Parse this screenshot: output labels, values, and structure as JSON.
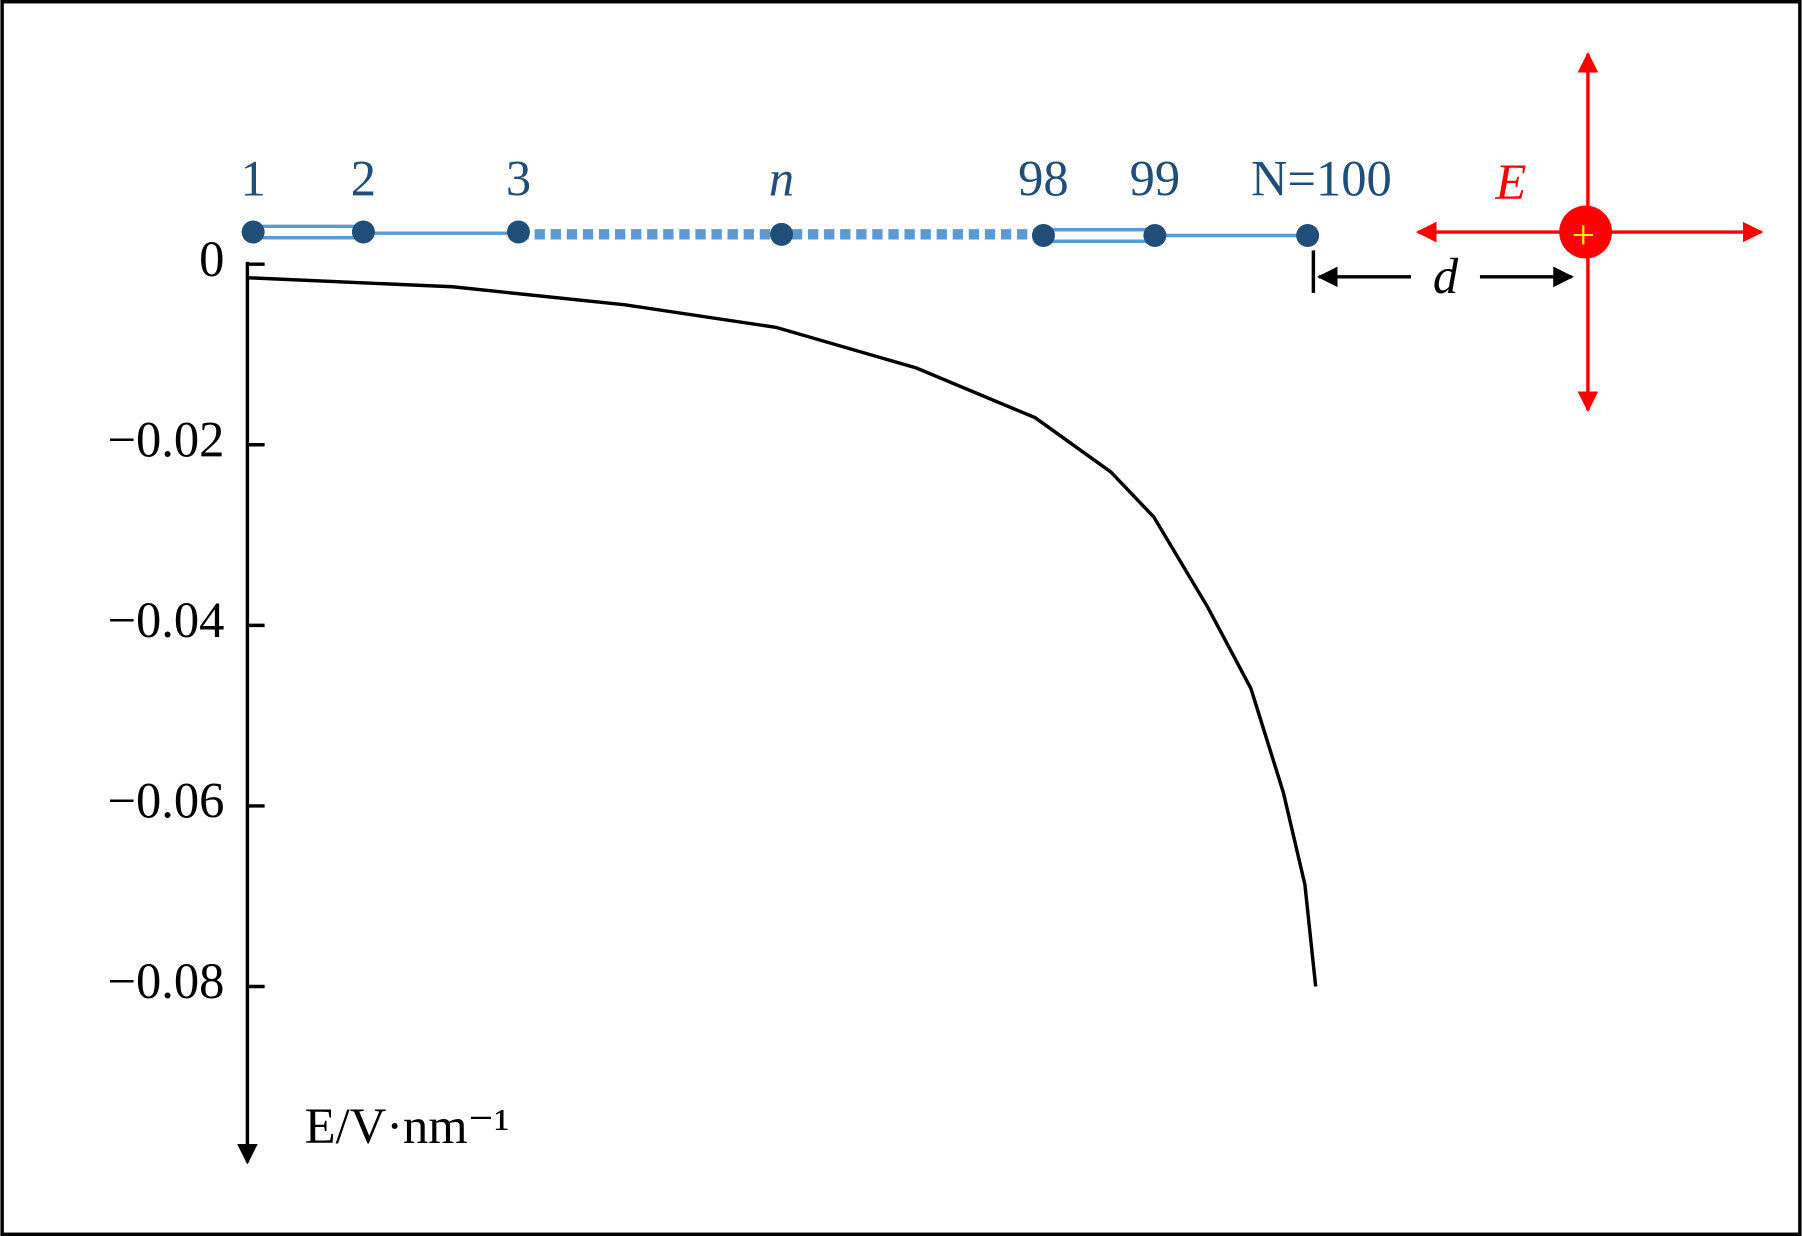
{
  "chart_data": {
    "type": "line",
    "x": [
      1,
      20,
      36,
      50,
      63,
      74,
      81,
      85,
      90,
      94,
      97,
      99,
      100
    ],
    "values": [
      -0.0015,
      -0.0025,
      -0.0045,
      -0.007,
      -0.0115,
      -0.017,
      -0.023,
      -0.028,
      -0.038,
      -0.047,
      -0.0585,
      -0.0687,
      -0.08
    ],
    "color": "#000000",
    "xlim": [
      1,
      100
    ],
    "ylim": [
      0,
      -0.1
    ],
    "yticks": [
      0,
      {
        "value": -0.02,
        "label": "−0.02"
      },
      {
        "value": -0.04,
        "label": "−0.04"
      },
      {
        "value": -0.06,
        "label": "−0.06"
      },
      {
        "value": -0.08,
        "label": "−0.08"
      }
    ],
    "y_label": "E/V·nm⁻¹",
    "diagram": {
      "atom_labels": [
        "1",
        "2",
        "3",
        "n",
        "98",
        "99",
        "N=100"
      ],
      "field_label": "E",
      "distance_label": "d",
      "charge_label": "+"
    }
  }
}
